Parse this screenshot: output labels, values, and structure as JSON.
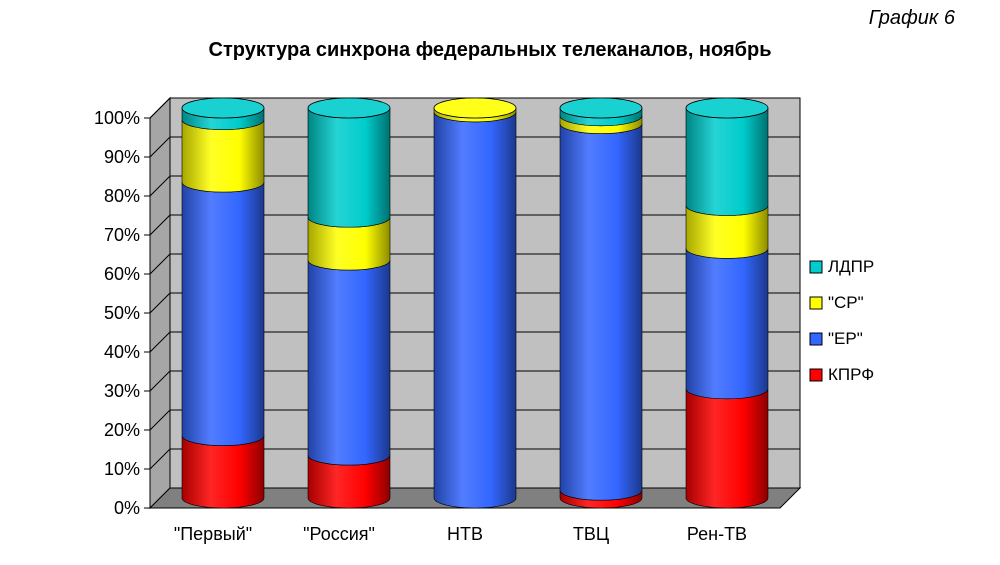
{
  "chart_data": {
    "type": "bar",
    "subtype": "stacked-100-3d-cylinder",
    "corner_label": "График 6",
    "title": "Структура синхрона федеральных телеканалов, ноябрь",
    "categories": [
      "\"Первый\"",
      "\"Россия\"",
      "НТВ",
      "ТВЦ",
      "Рен-ТВ"
    ],
    "series": [
      {
        "name": "КПРФ",
        "color": "#ff0000",
        "values": [
          16,
          11,
          0,
          2,
          28
        ]
      },
      {
        "name": "\"ЕР\"",
        "color": "#3366ff",
        "values": [
          65,
          50,
          99,
          94,
          36
        ]
      },
      {
        "name": "\"СР\"",
        "color": "#ffff00",
        "values": [
          16,
          11,
          1,
          2,
          11
        ]
      },
      {
        "name": "ЛДПР",
        "color": "#00cccc",
        "values": [
          3,
          28,
          0,
          2,
          25
        ]
      }
    ],
    "yticks": [
      "0%",
      "10%",
      "20%",
      "30%",
      "40%",
      "50%",
      "60%",
      "70%",
      "80%",
      "90%",
      "100%"
    ],
    "ylim": [
      0,
      100
    ],
    "grid": true,
    "legend_position": "right"
  }
}
